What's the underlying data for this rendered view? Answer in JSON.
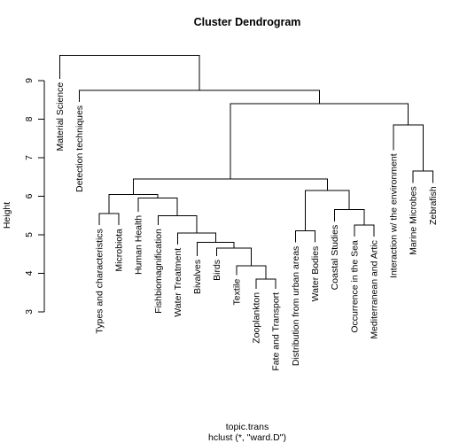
{
  "chart_data": {
    "type": "dendrogram",
    "title": "Cluster Dendrogram",
    "xlabel": "topic.trans",
    "sub": "hclust (*, \"ward.D\")",
    "ylabel": "Height",
    "ylim": [
      3,
      9.7
    ],
    "yticks": [
      3,
      4,
      5,
      6,
      7,
      8,
      9
    ],
    "leaves": [
      {
        "label": "Material Science",
        "h": 9.05
      },
      {
        "label": "Detection techniques",
        "h": 8.45
      },
      {
        "label": "Types and characteristics",
        "h": 5.25
      },
      {
        "label": "Microbiota",
        "h": 5.25
      },
      {
        "label": "Human Health",
        "h": 5.6
      },
      {
        "label": "Fishbiomagnification",
        "h": 5.25
      },
      {
        "label": "Water Treatment",
        "h": 4.75
      },
      {
        "label": "Bivalves",
        "h": 4.45
      },
      {
        "label": "Birds",
        "h": 4.45
      },
      {
        "label": "Textile",
        "h": 3.95
      },
      {
        "label": "Zooplankton",
        "h": 3.6
      },
      {
        "label": "Fate and Transport",
        "h": 3.6
      },
      {
        "label": "Distribution from urban areas",
        "h": 4.8
      },
      {
        "label": "Water Bodies",
        "h": 4.8
      },
      {
        "label": "Coastal Studies",
        "h": 5.35
      },
      {
        "label": "Occurrence in the Sea",
        "h": 4.95
      },
      {
        "label": "Mediterranean and Artic",
        "h": 4.95
      },
      {
        "label": "Interaction w/ the environment",
        "h": 7.2
      },
      {
        "label": "Marine Microbes",
        "h": 6.35
      },
      {
        "label": "Zebrafish",
        "h": 6.35
      }
    ],
    "merges": [
      {
        "a": [
          "leaf",
          10
        ],
        "b": [
          "leaf",
          11
        ],
        "height": 3.85
      },
      {
        "a": [
          "leaf",
          9
        ],
        "b": [
          "node",
          0
        ],
        "height": 4.2
      },
      {
        "a": [
          "leaf",
          8
        ],
        "b": [
          "node",
          1
        ],
        "height": 4.65
      },
      {
        "a": [
          "leaf",
          7
        ],
        "b": [
          "node",
          2
        ],
        "height": 4.8
      },
      {
        "a": [
          "leaf",
          6
        ],
        "b": [
          "node",
          3
        ],
        "height": 5.05
      },
      {
        "a": [
          "leaf",
          5
        ],
        "b": [
          "node",
          4
        ],
        "height": 5.5
      },
      {
        "a": [
          "leaf",
          4
        ],
        "b": [
          "node",
          5
        ],
        "height": 5.95
      },
      {
        "a": [
          "leaf",
          2
        ],
        "b": [
          "leaf",
          3
        ],
        "height": 5.55
      },
      {
        "a": [
          "node",
          7
        ],
        "b": [
          "node",
          6
        ],
        "height": 6.05
      },
      {
        "a": [
          "leaf",
          15
        ],
        "b": [
          "leaf",
          16
        ],
        "height": 5.25
      },
      {
        "a": [
          "leaf",
          14
        ],
        "b": [
          "node",
          9
        ],
        "height": 5.65
      },
      {
        "a": [
          "leaf",
          12
        ],
        "b": [
          "leaf",
          13
        ],
        "height": 5.1
      },
      {
        "a": [
          "node",
          11
        ],
        "b": [
          "node",
          10
        ],
        "height": 6.15
      },
      {
        "a": [
          "node",
          8
        ],
        "b": [
          "node",
          12
        ],
        "height": 6.45
      },
      {
        "a": [
          "leaf",
          18
        ],
        "b": [
          "leaf",
          19
        ],
        "height": 6.65
      },
      {
        "a": [
          "leaf",
          17
        ],
        "b": [
          "node",
          14
        ],
        "height": 7.85
      },
      {
        "a": [
          "node",
          13
        ],
        "b": [
          "node",
          15
        ],
        "height": 8.4
      },
      {
        "a": [
          "leaf",
          1
        ],
        "b": [
          "node",
          16
        ],
        "height": 8.75
      },
      {
        "a": [
          "leaf",
          0
        ],
        "b": [
          "node",
          17
        ],
        "height": 9.65
      }
    ]
  }
}
